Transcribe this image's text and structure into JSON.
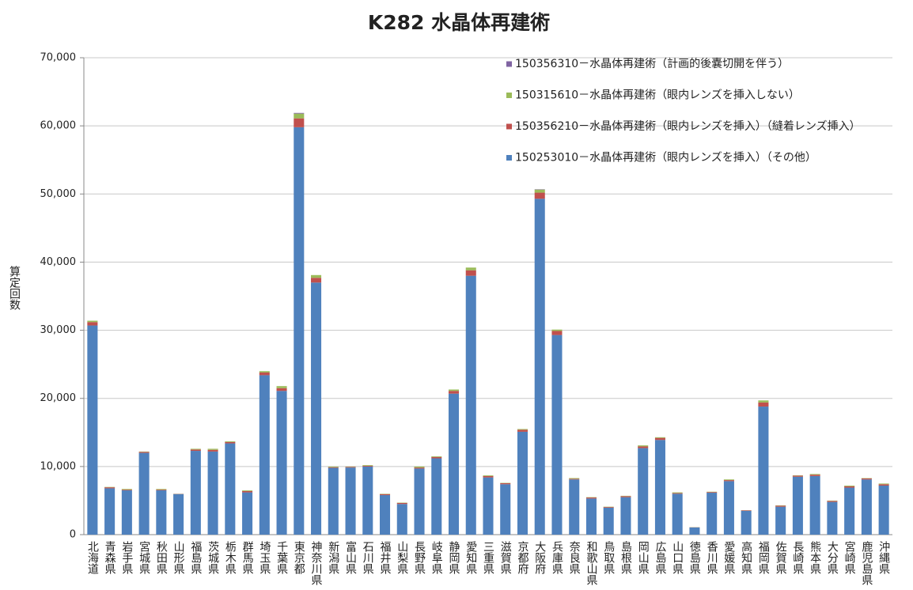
{
  "chart_data": {
    "type": "stacked_bar",
    "title": "K282 水晶体再建術",
    "y_label": "算定回数",
    "categories": [
      "北海道",
      "青森県",
      "岩手県",
      "宮城県",
      "秋田県",
      "山形県",
      "福島県",
      "茨城県",
      "栃木県",
      "群馬県",
      "埼玉県",
      "千葉県",
      "東京都",
      "神奈川県",
      "新潟県",
      "富山県",
      "石川県",
      "福井県",
      "山梨県",
      "長野県",
      "岐阜県",
      "静岡県",
      "愛知県",
      "三重県",
      "滋賀県",
      "京都府",
      "大阪府",
      "兵庫県",
      "奈良県",
      "和歌山県",
      "鳥取県",
      "島根県",
      "岡山県",
      "広島県",
      "山口県",
      "徳島県",
      "香川県",
      "愛媛県",
      "高知県",
      "福岡県",
      "佐賀県",
      "長崎県",
      "熊本県",
      "大分県",
      "宮崎県",
      "鹿児島県",
      "沖縄県"
    ],
    "series": [
      {
        "name": "150253010－水晶体再建術（眼内レンズを挿入）（その他）",
        "color": "#4f81bd",
        "values": [
          30700,
          6800,
          6500,
          12000,
          6500,
          5950,
          12300,
          12200,
          13400,
          6200,
          23400,
          21100,
          59800,
          37000,
          9800,
          9850,
          10000,
          5800,
          4500,
          9700,
          11200,
          20700,
          38000,
          8400,
          7400,
          15100,
          49300,
          29300,
          8100,
          5300,
          3950,
          5500,
          12700,
          13900,
          6000,
          1050,
          6150,
          7850,
          3500,
          18800,
          4100,
          8500,
          8600,
          4800,
          6900,
          8100,
          7200
        ]
      },
      {
        "name": "150356210－水晶体再建術（眼内レンズを挿入）（縫着レンズ挿入）",
        "color": "#c0504d",
        "values": [
          500,
          150,
          100,
          150,
          100,
          30,
          200,
          250,
          200,
          200,
          400,
          400,
          1300,
          700,
          100,
          100,
          100,
          150,
          150,
          150,
          200,
          400,
          800,
          200,
          150,
          300,
          900,
          600,
          100,
          150,
          100,
          150,
          250,
          300,
          100,
          30,
          100,
          150,
          80,
          600,
          150,
          150,
          200,
          150,
          200,
          150,
          200
        ]
      },
      {
        "name": "150315610－水晶体再建術（眼内レンズを挿入しない）",
        "color": "#9bbb59",
        "values": [
          200,
          50,
          100,
          50,
          100,
          20,
          100,
          150,
          100,
          100,
          200,
          300,
          700,
          400,
          100,
          50,
          100,
          50,
          50,
          150,
          100,
          200,
          400,
          100,
          50,
          100,
          450,
          200,
          100,
          50,
          50,
          50,
          150,
          100,
          100,
          20,
          50,
          100,
          20,
          300,
          50,
          50,
          100,
          50,
          100,
          50,
          100
        ]
      },
      {
        "name": "150356310－水晶体再建術（計画的後嚢切開を伴う）",
        "color": "#8064a2",
        "values": [
          0,
          0,
          0,
          0,
          0,
          0,
          0,
          0,
          0,
          0,
          0,
          0,
          100,
          0,
          0,
          0,
          0,
          0,
          0,
          0,
          0,
          0,
          0,
          0,
          0,
          0,
          50,
          0,
          0,
          0,
          0,
          0,
          0,
          0,
          0,
          0,
          0,
          0,
          0,
          0,
          0,
          0,
          0,
          0,
          0,
          0,
          0
        ]
      }
    ],
    "ylim": [
      0,
      70000
    ],
    "yticks": [
      0,
      {
        "value": 10000,
        "label": "10,000"
      },
      {
        "value": 20000,
        "label": "20,000"
      },
      {
        "value": 30000,
        "label": "30,000"
      },
      {
        "value": 40000,
        "label": "40,000"
      },
      {
        "value": 50000,
        "label": "50,000"
      },
      {
        "value": 60000,
        "label": "60,000"
      },
      {
        "value": 70000,
        "label": "70,000"
      }
    ],
    "grid": true,
    "legend": "top-right"
  }
}
